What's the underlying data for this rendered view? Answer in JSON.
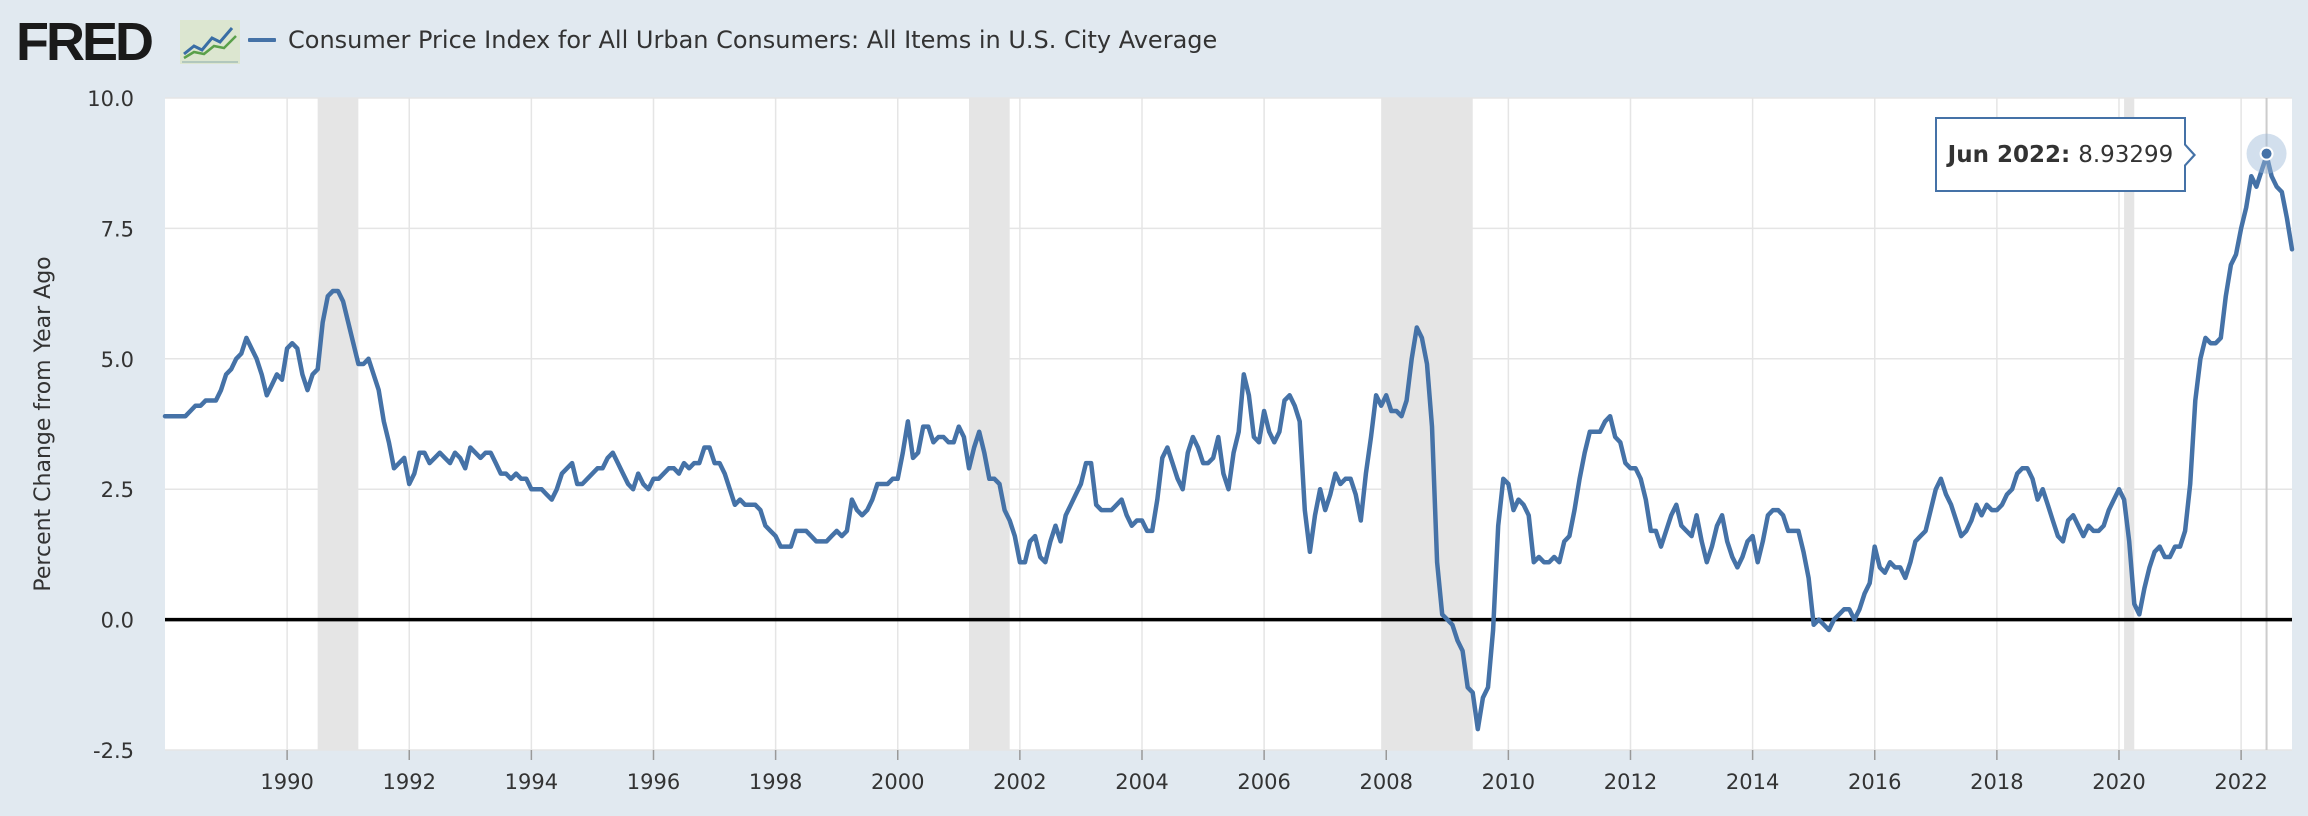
{
  "app": {
    "logo_text": "FRED",
    "logo_icon": "trend-line-chart-icon"
  },
  "colors": {
    "background": "#e1e9f0",
    "plot_background": "#ffffff",
    "series": "#4572a7",
    "recession": "#e5e5e5",
    "gridline": "#e5e5e5",
    "zero_line": "#000000"
  },
  "tooltip": {
    "date": "Jun 2022:",
    "value": "8.93299"
  },
  "chart_data": {
    "type": "line",
    "title": "",
    "xlabel": "",
    "ylabel": "Percent Change from Year Ago",
    "ylim": [
      -2.5,
      10.0
    ],
    "xlim": [
      "1988-01",
      "2022-11"
    ],
    "grid": true,
    "legend_position": "top-left",
    "y_ticks": [
      "10.0",
      "7.5",
      "5.0",
      "2.5",
      "0.0",
      "-2.5"
    ],
    "x_ticks": [
      "1990",
      "1992",
      "1994",
      "1996",
      "1998",
      "2000",
      "2002",
      "2004",
      "2006",
      "2008",
      "2010",
      "2012",
      "2014",
      "2016",
      "2018",
      "2020",
      "2022"
    ],
    "recessions": [
      [
        "1990-07",
        "1991-03"
      ],
      [
        "2001-03",
        "2001-11"
      ],
      [
        "2007-12",
        "2009-06"
      ],
      [
        "2020-02",
        "2020-04"
      ]
    ],
    "reference_line": 0.0,
    "highlight": {
      "x": "2022-06",
      "y": 8.93299
    },
    "series": [
      {
        "name": "Consumer Price Index for All Urban Consumers: All Items in U.S. City Average",
        "start": "1988-01",
        "frequency": "monthly",
        "values": [
          3.9,
          3.9,
          3.9,
          3.9,
          3.9,
          4.0,
          4.1,
          4.1,
          4.2,
          4.2,
          4.2,
          4.4,
          4.7,
          4.8,
          5.0,
          5.1,
          5.4,
          5.2,
          5.0,
          4.7,
          4.3,
          4.5,
          4.7,
          4.6,
          5.2,
          5.3,
          5.2,
          4.7,
          4.4,
          4.7,
          4.8,
          5.7,
          6.2,
          6.3,
          6.3,
          6.1,
          5.7,
          5.3,
          4.9,
          4.9,
          5.0,
          4.7,
          4.4,
          3.8,
          3.4,
          2.9,
          3.0,
          3.1,
          2.6,
          2.8,
          3.2,
          3.2,
          3.0,
          3.1,
          3.2,
          3.1,
          3.0,
          3.2,
          3.1,
          2.9,
          3.3,
          3.2,
          3.1,
          3.2,
          3.2,
          3.0,
          2.8,
          2.8,
          2.7,
          2.8,
          2.7,
          2.7,
          2.5,
          2.5,
          2.5,
          2.4,
          2.3,
          2.5,
          2.8,
          2.9,
          3.0,
          2.6,
          2.6,
          2.7,
          2.8,
          2.9,
          2.9,
          3.1,
          3.2,
          3.0,
          2.8,
          2.6,
          2.5,
          2.8,
          2.6,
          2.5,
          2.7,
          2.7,
          2.8,
          2.9,
          2.9,
          2.8,
          3.0,
          2.9,
          3.0,
          3.0,
          3.3,
          3.3,
          3.0,
          3.0,
          2.8,
          2.5,
          2.2,
          2.3,
          2.2,
          2.2,
          2.2,
          2.1,
          1.8,
          1.7,
          1.6,
          1.4,
          1.4,
          1.4,
          1.7,
          1.7,
          1.7,
          1.6,
          1.5,
          1.5,
          1.5,
          1.6,
          1.7,
          1.6,
          1.7,
          2.3,
          2.1,
          2.0,
          2.1,
          2.3,
          2.6,
          2.6,
          2.6,
          2.7,
          2.7,
          3.2,
          3.8,
          3.1,
          3.2,
          3.7,
          3.7,
          3.4,
          3.5,
          3.5,
          3.4,
          3.4,
          3.7,
          3.5,
          2.9,
          3.3,
          3.6,
          3.2,
          2.7,
          2.7,
          2.6,
          2.1,
          1.9,
          1.6,
          1.1,
          1.1,
          1.5,
          1.6,
          1.2,
          1.1,
          1.5,
          1.8,
          1.5,
          2.0,
          2.2,
          2.4,
          2.6,
          3.0,
          3.0,
          2.2,
          2.1,
          2.1,
          2.1,
          2.2,
          2.3,
          2.0,
          1.8,
          1.9,
          1.9,
          1.7,
          1.7,
          2.3,
          3.1,
          3.3,
          3.0,
          2.7,
          2.5,
          3.2,
          3.5,
          3.3,
          3.0,
          3.0,
          3.1,
          3.5,
          2.8,
          2.5,
          3.2,
          3.6,
          4.7,
          4.3,
          3.5,
          3.4,
          4.0,
          3.6,
          3.4,
          3.6,
          4.2,
          4.3,
          4.1,
          3.8,
          2.1,
          1.3,
          2.0,
          2.5,
          2.1,
          2.4,
          2.8,
          2.6,
          2.7,
          2.7,
          2.4,
          1.9,
          2.8,
          3.5,
          4.3,
          4.1,
          4.3,
          4.0,
          4.0,
          3.9,
          4.2,
          5.0,
          5.6,
          5.4,
          4.9,
          3.7,
          1.1,
          0.1,
          0.0,
          -0.1,
          -0.4,
          -0.6,
          -1.3,
          -1.4,
          -2.1,
          -1.5,
          -1.3,
          -0.2,
          1.8,
          2.7,
          2.6,
          2.1,
          2.3,
          2.2,
          2.0,
          1.1,
          1.2,
          1.1,
          1.1,
          1.2,
          1.1,
          1.5,
          1.6,
          2.1,
          2.7,
          3.2,
          3.6,
          3.6,
          3.6,
          3.8,
          3.9,
          3.5,
          3.4,
          3.0,
          2.9,
          2.9,
          2.7,
          2.3,
          1.7,
          1.7,
          1.4,
          1.7,
          2.0,
          2.2,
          1.8,
          1.7,
          1.6,
          2.0,
          1.5,
          1.1,
          1.4,
          1.8,
          2.0,
          1.5,
          1.2,
          1.0,
          1.2,
          1.5,
          1.6,
          1.1,
          1.5,
          2.0,
          2.1,
          2.1,
          2.0,
          1.7,
          1.7,
          1.7,
          1.3,
          0.8,
          -0.1,
          0.0,
          -0.1,
          -0.2,
          0.0,
          0.1,
          0.2,
          0.2,
          0.0,
          0.2,
          0.5,
          0.7,
          1.4,
          1.0,
          0.9,
          1.1,
          1.0,
          1.0,
          0.8,
          1.1,
          1.5,
          1.6,
          1.7,
          2.1,
          2.5,
          2.7,
          2.4,
          2.2,
          1.9,
          1.6,
          1.7,
          1.9,
          2.2,
          2.0,
          2.2,
          2.1,
          2.1,
          2.2,
          2.4,
          2.5,
          2.8,
          2.9,
          2.9,
          2.7,
          2.3,
          2.5,
          2.2,
          1.9,
          1.6,
          1.5,
          1.9,
          2.0,
          1.8,
          1.6,
          1.8,
          1.7,
          1.7,
          1.8,
          2.1,
          2.3,
          2.5,
          2.3,
          1.5,
          0.3,
          0.1,
          0.6,
          1.0,
          1.3,
          1.4,
          1.2,
          1.2,
          1.4,
          1.4,
          1.7,
          2.6,
          4.2,
          5.0,
          5.4,
          5.3,
          5.3,
          5.4,
          6.2,
          6.8,
          7.0,
          7.5,
          7.9,
          8.5,
          8.3,
          8.6,
          8.9,
          8.5,
          8.3,
          8.2,
          7.7,
          7.1
        ]
      }
    ]
  }
}
